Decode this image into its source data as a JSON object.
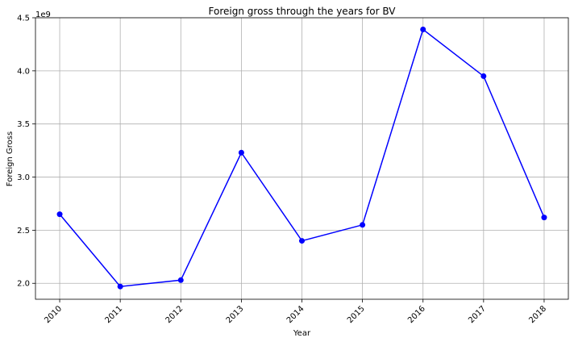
{
  "chart_data": {
    "type": "line",
    "title": "Foreign gross through the years for BV",
    "xlabel": "Year",
    "ylabel": "Foreign Gross",
    "offset_label": "1e9",
    "x": [
      "2010",
      "2011",
      "2012",
      "2013",
      "2014",
      "2015",
      "2016",
      "2017",
      "2018"
    ],
    "series": [
      {
        "values": [
          2.65,
          1.97,
          2.03,
          3.23,
          2.4,
          2.55,
          4.39,
          3.95,
          2.62
        ],
        "color": "#0000ff",
        "marker": "circle"
      }
    ],
    "yticks": [
      "2.0",
      "2.5",
      "3.0",
      "3.5",
      "4.0",
      "4.5"
    ],
    "ytick_values": [
      2.0,
      2.5,
      3.0,
      3.5,
      4.0,
      4.5
    ],
    "ylim": [
      1.85,
      4.5
    ],
    "grid": true,
    "xtick_rotation": 45
  }
}
